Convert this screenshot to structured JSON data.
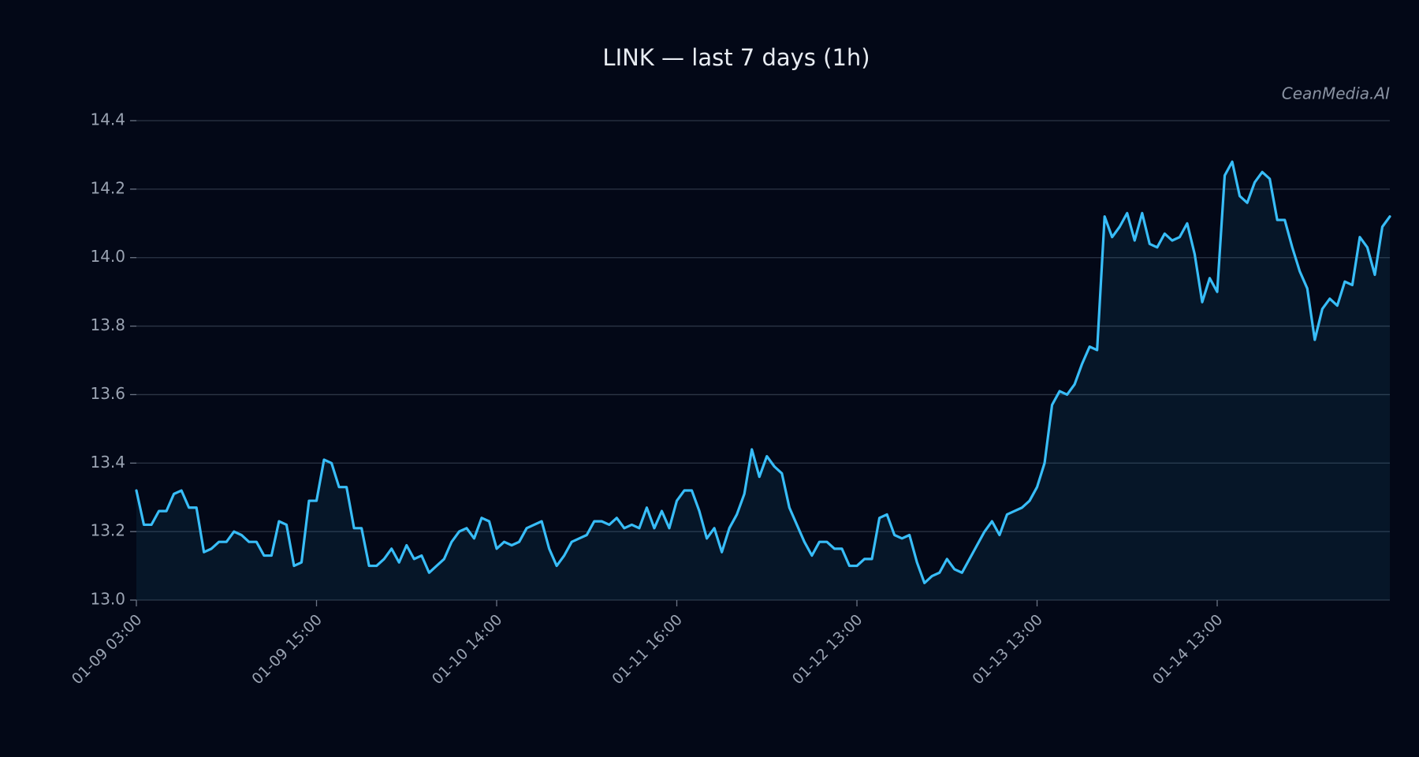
{
  "chart_data": {
    "type": "line",
    "title": "LINK — last 7 days (1h)",
    "watermark": "CeanMedia.AI",
    "categories": [
      "01-09 03:00",
      null,
      null,
      null,
      null,
      null,
      null,
      null,
      null,
      null,
      null,
      null,
      null,
      null,
      null,
      null,
      null,
      null,
      null,
      null,
      null,
      null,
      null,
      null,
      "01-09 15:00",
      null,
      null,
      null,
      null,
      null,
      null,
      null,
      null,
      null,
      null,
      null,
      null,
      null,
      null,
      null,
      null,
      null,
      null,
      null,
      null,
      null,
      null,
      null,
      "01-10 14:00",
      null,
      null,
      null,
      null,
      null,
      null,
      null,
      null,
      null,
      null,
      null,
      null,
      null,
      null,
      null,
      null,
      null,
      null,
      null,
      null,
      null,
      null,
      null,
      "01-11 16:00",
      null,
      null,
      null,
      null,
      null,
      null,
      null,
      null,
      null,
      null,
      null,
      null,
      null,
      null,
      null,
      null,
      null,
      null,
      null,
      null,
      null,
      null,
      null,
      "01-12 13:00",
      null,
      null,
      null,
      null,
      null,
      null,
      null,
      null,
      null,
      null,
      null,
      null,
      null,
      null,
      null,
      null,
      null,
      null,
      null,
      null,
      null,
      null,
      null,
      "01-13 13:00",
      null,
      null,
      null,
      null,
      null,
      null,
      null,
      null,
      null,
      null,
      null,
      null,
      null,
      null,
      null,
      null,
      null,
      null,
      null,
      null,
      null,
      null,
      null,
      "01-14 13:00",
      null,
      null,
      null,
      null,
      null,
      null,
      null,
      null,
      null,
      null,
      null,
      null,
      null,
      null,
      null,
      null,
      null,
      null,
      null,
      null,
      null,
      null,
      null
    ],
    "series": [
      {
        "name": "LINK",
        "color": "#38bdf8",
        "values": [
          13.32,
          13.22,
          13.22,
          13.26,
          13.26,
          13.31,
          13.32,
          13.27,
          13.27,
          13.14,
          13.15,
          13.17,
          13.17,
          13.2,
          13.19,
          13.17,
          13.17,
          13.13,
          13.13,
          13.23,
          13.22,
          13.1,
          13.11,
          13.29,
          13.29,
          13.41,
          13.4,
          13.33,
          13.33,
          13.21,
          13.21,
          13.1,
          13.1,
          13.12,
          13.15,
          13.11,
          13.16,
          13.12,
          13.13,
          13.08,
          13.1,
          13.12,
          13.17,
          13.2,
          13.21,
          13.18,
          13.24,
          13.23,
          13.15,
          13.17,
          13.16,
          13.17,
          13.21,
          13.22,
          13.23,
          13.15,
          13.1,
          13.13,
          13.17,
          13.18,
          13.19,
          13.23,
          13.23,
          13.22,
          13.24,
          13.21,
          13.22,
          13.21,
          13.27,
          13.21,
          13.26,
          13.21,
          13.29,
          13.32,
          13.32,
          13.26,
          13.18,
          13.21,
          13.14,
          13.21,
          13.25,
          13.31,
          13.44,
          13.36,
          13.42,
          13.39,
          13.37,
          13.27,
          13.22,
          13.17,
          13.13,
          13.17,
          13.17,
          13.15,
          13.15,
          13.1,
          13.1,
          13.12,
          13.12,
          13.24,
          13.25,
          13.19,
          13.18,
          13.19,
          13.11,
          13.05,
          13.07,
          13.08,
          13.12,
          13.09,
          13.08,
          13.12,
          13.16,
          13.2,
          13.23,
          13.19,
          13.25,
          13.26,
          13.27,
          13.29,
          13.33,
          13.4,
          13.57,
          13.61,
          13.6,
          13.63,
          13.69,
          13.74,
          13.73,
          14.12,
          14.06,
          14.09,
          14.13,
          14.05,
          14.13,
          14.04,
          14.03,
          14.07,
          14.05,
          14.06,
          14.1,
          14.01,
          13.87,
          13.94,
          13.9,
          14.24,
          14.28,
          14.18,
          14.16,
          14.22,
          14.25,
          14.23,
          14.11,
          14.11,
          14.03,
          13.96,
          13.91,
          13.76,
          13.85,
          13.88,
          13.86,
          13.93,
          13.92,
          14.06,
          14.03,
          13.95,
          14.09,
          14.12
        ]
      }
    ],
    "ylim": [
      13.0,
      14.4
    ],
    "yticks": [
      {
        "value": 13.0,
        "label": "13.0"
      },
      {
        "value": 13.2,
        "label": "13.2"
      },
      {
        "value": 13.4,
        "label": "13.4"
      },
      {
        "value": 13.6,
        "label": "13.6"
      },
      {
        "value": 13.8,
        "label": "13.8"
      },
      {
        "value": 14.0,
        "label": "14.0"
      },
      {
        "value": 14.2,
        "label": "14.2"
      },
      {
        "value": 14.4,
        "label": "14.4"
      }
    ],
    "grid": true
  }
}
